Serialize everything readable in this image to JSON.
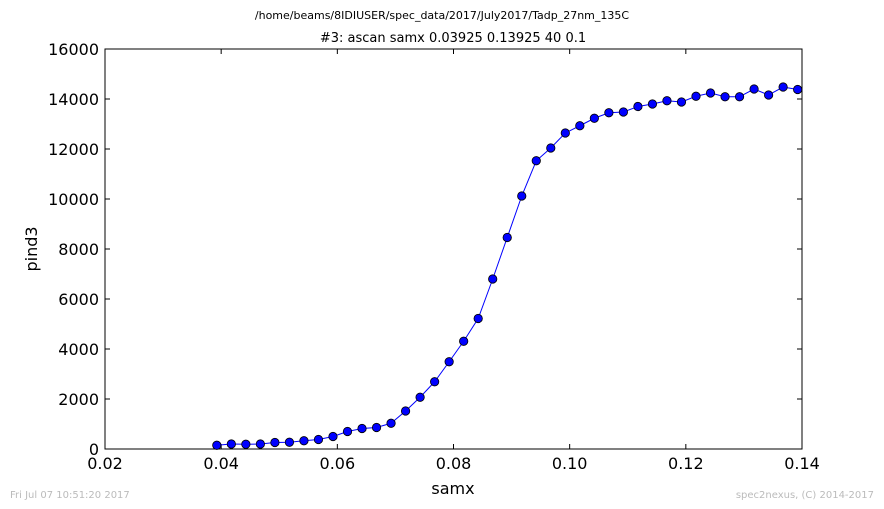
{
  "page": {
    "supertitle": "/home/beams/8IDIUSER/spec_data/2017/July2017/Tadp_27nm_135C",
    "footer_left": "Fri Jul 07 10:51:20 2017",
    "footer_right": "spec2nexus, (C) 2014-2017"
  },
  "chart_data": {
    "type": "line",
    "title": "#3: ascan  samx 0.03925 0.13925  40 0.1",
    "xlabel": "samx",
    "ylabel": "pind3",
    "xlim": [
      0.02,
      0.14
    ],
    "ylim": [
      0,
      16000
    ],
    "xticks": [
      0.02,
      0.04,
      0.06,
      0.08,
      0.1,
      0.12,
      0.14
    ],
    "xtick_labels": [
      "0.02",
      "0.04",
      "0.06",
      "0.08",
      "0.10",
      "0.12",
      "0.14"
    ],
    "yticks": [
      0,
      2000,
      4000,
      6000,
      8000,
      10000,
      12000,
      14000,
      16000
    ],
    "ytick_labels": [
      "0",
      "2000",
      "4000",
      "6000",
      "8000",
      "10000",
      "12000",
      "14000",
      "16000"
    ],
    "grid": false,
    "line_color": "#0000ff",
    "marker_color": "#0000ff",
    "series": [
      {
        "x": [
          0.03925,
          0.04175,
          0.04425,
          0.04675,
          0.04925,
          0.05175,
          0.05425,
          0.05675,
          0.05925,
          0.06175,
          0.06425,
          0.06675,
          0.06925,
          0.07175,
          0.07425,
          0.07675,
          0.07925,
          0.08175,
          0.08425,
          0.08675,
          0.08925,
          0.09175,
          0.09425,
          0.09675,
          0.09925,
          0.10175,
          0.10425,
          0.10675,
          0.10925,
          0.11175,
          0.11425,
          0.11675,
          0.11925,
          0.12175,
          0.12425,
          0.12675,
          0.12925,
          0.13175,
          0.13425,
          0.13675,
          0.13925
        ],
        "y": [
          150,
          200,
          190,
          200,
          260,
          270,
          330,
          380,
          500,
          700,
          820,
          860,
          1030,
          1520,
          2070,
          2690,
          3490,
          4310,
          5220,
          6800,
          8460,
          10120,
          11530,
          12040,
          12640,
          12930,
          13230,
          13450,
          13480,
          13700,
          13800,
          13930,
          13880,
          14110,
          14240,
          14090,
          14090,
          14400,
          14160,
          14480,
          14380
        ]
      }
    ]
  }
}
